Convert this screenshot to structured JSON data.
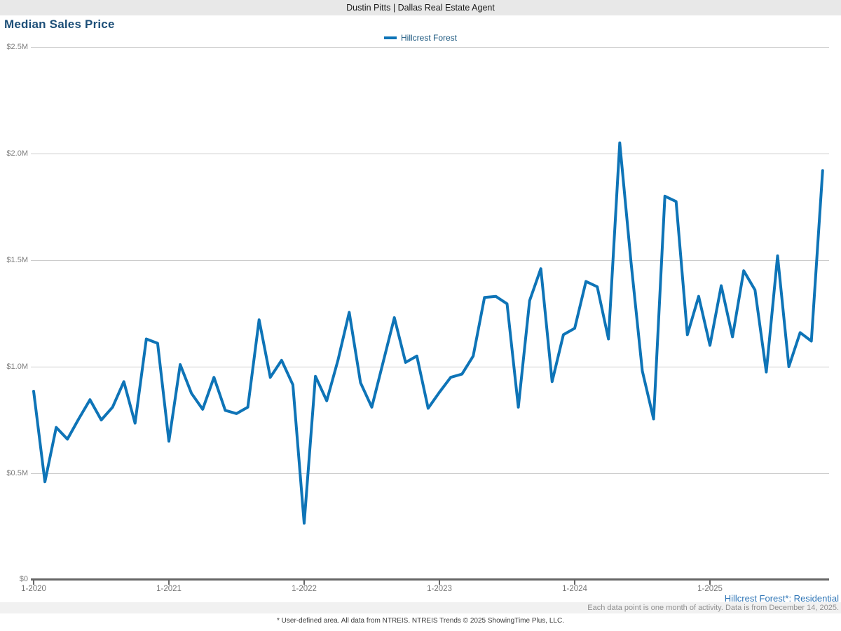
{
  "header": {
    "brand": "Dustin Pitts | Dallas Real Estate Agent"
  },
  "title": "Median Sales Price",
  "legend": {
    "label": "Hillcrest Forest"
  },
  "footnotes": {
    "series_note": "Hillcrest Forest*: Residential",
    "data_note": "Each data point is one month of activity. Data is from December 14, 2025.",
    "source_note": "* User-defined area. All data from NTREIS. NTREIS Trends © 2025 ShowingTime Plus, LLC."
  },
  "colors": {
    "line_blue": "#0e74b7",
    "title_navy": "#1d4f78",
    "footnote_link_blue": "#2e75b6",
    "grid_gray": "#cccccc",
    "axis_gray": "#666666"
  },
  "chart_data": {
    "type": "line",
    "title": "Median Sales Price",
    "xlabel": "",
    "ylabel": "",
    "legend_entries": [
      "Hillcrest Forest"
    ],
    "legend_position": "top-center",
    "grid": "horizontal",
    "y_tick_labels": [
      "$0",
      "$0.5M",
      "$1.0M",
      "$1.5M",
      "$2.0M",
      "$2.5M"
    ],
    "ylim_usd": [
      0,
      2500000
    ],
    "x_tick_labels": [
      "1-2020",
      "1-2021",
      "1-2022",
      "1-2023",
      "1-2024",
      "1-2025"
    ],
    "x_start_month": "1-2020",
    "x_end_month": "11-2025",
    "x_step": "1 month",
    "series": [
      {
        "name": "Hillcrest Forest",
        "color": "#0e74b7",
        "values_usd_thousands": [
          885,
          460,
          715,
          660,
          755,
          845,
          750,
          810,
          930,
          735,
          1130,
          1110,
          650,
          1010,
          875,
          800,
          950,
          795,
          780,
          810,
          1220,
          950,
          1030,
          915,
          265,
          955,
          840,
          1030,
          1255,
          925,
          810,
          1020,
          1230,
          1020,
          1050,
          805,
          880,
          950,
          965,
          1050,
          1325,
          1330,
          1295,
          810,
          1310,
          1460,
          930,
          1150,
          1180,
          1400,
          1375,
          1130,
          2050,
          1490,
          980,
          755,
          1800,
          1775,
          1150,
          1330,
          1100,
          1380,
          1140,
          1450,
          1360,
          975,
          1520,
          1000,
          1160,
          1120,
          1920
        ]
      }
    ]
  }
}
